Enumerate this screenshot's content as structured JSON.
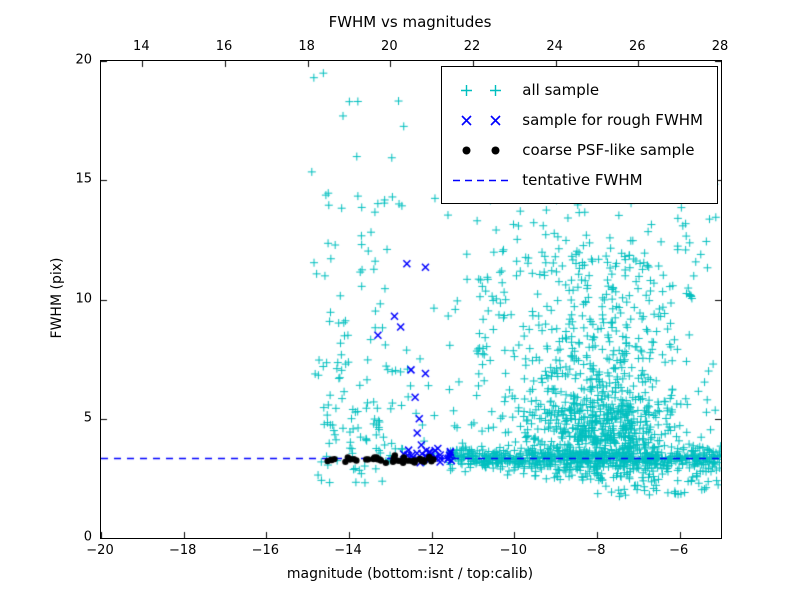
{
  "figure": {
    "background": "#ffffff",
    "frame_color": "#000000"
  },
  "chart_data": {
    "type": "scatter",
    "title": "FWHM vs magnitudes",
    "xlabel": "magnitude (bottom:isnt / top:calib)",
    "ylabel": "FWHM (pix)",
    "xlim": [
      -20,
      -5
    ],
    "ylim": [
      0,
      20
    ],
    "grid": false,
    "x_ticks": {
      "values": [
        -20,
        -18,
        -16,
        -14,
        -12,
        -10,
        -8,
        -6
      ],
      "labels": [
        "−20",
        "−18",
        "−16",
        "−14",
        "−12",
        "−10",
        "−8",
        "−6"
      ]
    },
    "top_ticks": {
      "values": [
        14,
        16,
        18,
        20,
        22,
        24,
        26,
        28
      ],
      "labels": [
        "14",
        "16",
        "18",
        "20",
        "22",
        "24",
        "26",
        "28"
      ],
      "offset_from_bottom_axis": 33
    },
    "y_ticks": {
      "values": [
        0,
        5,
        10,
        15,
        20
      ],
      "labels": [
        "0",
        "5",
        "10",
        "15",
        "20"
      ]
    },
    "tentative_fwhm_y": 3.35,
    "legend": {
      "position": "upper right",
      "entries": [
        {
          "marker": "plus",
          "color": "#00bfbf",
          "label": "all sample"
        },
        {
          "marker": "x",
          "color": "#0000ff",
          "label": "sample for rough FWHM"
        },
        {
          "marker": "dot",
          "color": "#000000",
          "label": "coarse PSF-like sample"
        },
        {
          "marker": "dashed-line",
          "color": "#0000ff",
          "label": "tentative FWHM"
        }
      ]
    },
    "series": [
      {
        "name": "all sample",
        "marker": "plus",
        "color": "#00bfbf",
        "outliers": [
          [
            -14.85,
            19.3
          ],
          [
            -14.9,
            15.35
          ],
          [
            -12.95,
            14.3
          ],
          [
            -11.15,
            11.9
          ],
          [
            -5.3,
            7.0
          ],
          [
            -5.4,
            2.05
          ],
          [
            -10.9,
            13.3
          ]
        ],
        "clusters": [
          {
            "n": 100,
            "x": {
              "dist": "norm",
              "mean": -13.9,
              "sd": 0.85,
              "min": -14.9,
              "max": -11.6
            },
            "y": {
              "dist": "norm",
              "mean": 4.6,
              "sd": 1.6,
              "min": 2.2,
              "max": 8.5
            }
          },
          {
            "n": 55,
            "x": {
              "dist": "norm",
              "mean": -13.7,
              "sd": 0.9,
              "min": -14.9,
              "max": -11.6
            },
            "y": {
              "dist": "uniform",
              "min": 7.0,
              "max": 14.5
            }
          },
          {
            "n": 8,
            "x": {
              "dist": "uniform",
              "min": -14.9,
              "max": -12.6
            },
            "y": {
              "dist": "uniform",
              "min": 14.5,
              "max": 19.5
            }
          },
          {
            "n": 750,
            "x": {
              "dist": "norm",
              "mean": -7.9,
              "sd": 1.05,
              "min": -10.6,
              "max": -5.0
            },
            "y": {
              "dist": "norm",
              "mean": 4.4,
              "sd": 1.3,
              "min": 2.4,
              "max": 8.5
            }
          },
          {
            "n": 300,
            "x": {
              "dist": "norm",
              "mean": -8.0,
              "sd": 1.3,
              "min": -10.9,
              "max": -5.0
            },
            "y": {
              "dist": "uniform",
              "min": 6.5,
              "max": 12.0
            }
          },
          {
            "n": 90,
            "x": {
              "dist": "uniform",
              "min": -10.6,
              "max": -5.1
            },
            "y": {
              "dist": "uniform",
              "min": 12.0,
              "max": 16.3
            }
          },
          {
            "n": 600,
            "x": {
              "dist": "uniform",
              "min": -11.6,
              "max": -5.0
            },
            "y": {
              "dist": "norm",
              "mean": 3.35,
              "sd": 0.2,
              "min": 2.6,
              "max": 4.2
            }
          },
          {
            "n": 60,
            "x": {
              "dist": "uniform",
              "min": -8.0,
              "max": -5.0
            },
            "y": {
              "dist": "uniform",
              "min": 1.7,
              "max": 3.0
            }
          },
          {
            "n": 45,
            "x": {
              "dist": "uniform",
              "min": -11.6,
              "max": -10.5
            },
            "y": {
              "dist": "uniform",
              "min": 2.6,
              "max": 11.0
            }
          }
        ]
      },
      {
        "name": "sample for rough FWHM",
        "marker": "x",
        "color": "#0000ff",
        "points": [
          [
            -12.6,
            11.5
          ],
          [
            -12.15,
            11.35
          ],
          [
            -12.9,
            9.3
          ],
          [
            -12.75,
            8.85
          ],
          [
            -13.3,
            8.5
          ],
          [
            -12.5,
            7.05
          ],
          [
            -12.15,
            6.9
          ],
          [
            -12.4,
            5.9
          ],
          [
            -12.3,
            5.0
          ],
          [
            -12.35,
            4.4
          ],
          [
            -12.25,
            3.9
          ],
          [
            -11.85,
            3.75
          ]
        ],
        "clusters": [
          {
            "n": 30,
            "x": {
              "dist": "uniform",
              "min": -12.7,
              "max": -11.45
            },
            "y": {
              "dist": "norm",
              "mean": 3.45,
              "sd": 0.15,
              "min": 3.1,
              "max": 3.9
            }
          }
        ]
      },
      {
        "name": "coarse PSF-like sample",
        "marker": "dot",
        "color": "#000000",
        "clusters": [
          {
            "n": 45,
            "x": {
              "dist": "uniform",
              "min": -14.55,
              "max": -11.7
            },
            "y": {
              "dist": "norm",
              "mean": 3.3,
              "sd": 0.08,
              "min": 3.1,
              "max": 3.55
            }
          }
        ]
      },
      {
        "name": "tentative FWHM",
        "marker": "dashed-line",
        "color": "#0000ff",
        "line_y": 3.35
      }
    ]
  }
}
